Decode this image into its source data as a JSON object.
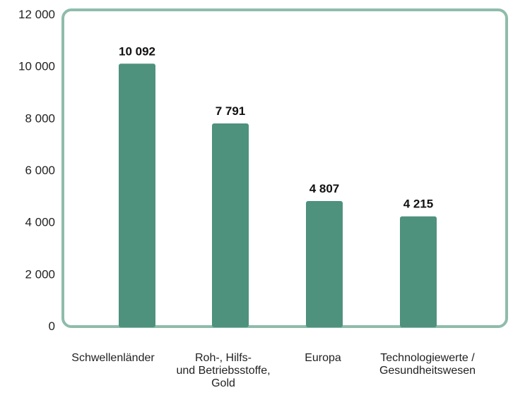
{
  "chart_data": {
    "type": "bar",
    "categories": [
      [
        "Schwellenländer"
      ],
      [
        "Roh-, Hilfs-",
        "und Betriebsstoffe,",
        "Gold"
      ],
      [
        "Europa"
      ],
      [
        "Technologiewerte /",
        "Gesundheitswesen"
      ]
    ],
    "values": [
      10092,
      7791,
      4807,
      4215
    ],
    "value_labels": [
      "10 092",
      "7 791",
      "4 807",
      "4 215"
    ],
    "yticks": [
      0,
      2000,
      4000,
      6000,
      8000,
      10000,
      12000
    ],
    "ytick_labels": [
      "0",
      "2 000",
      "4 000",
      "6 000",
      "8 000",
      "10 000",
      "12 000"
    ],
    "ylim": [
      0,
      12000
    ],
    "title": "",
    "xlabel": "",
    "ylabel": "",
    "grid": false,
    "bar_color": "#4e917d",
    "frame_color": "#8fbcab"
  }
}
